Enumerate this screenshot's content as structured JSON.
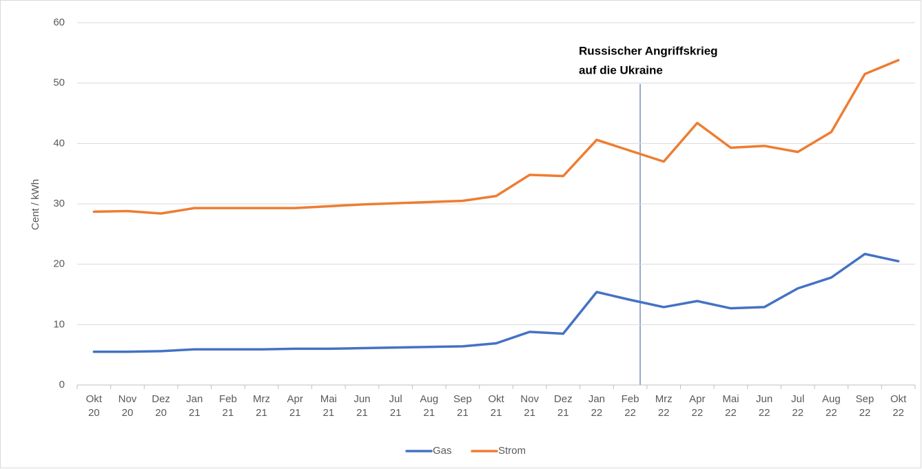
{
  "chart_data": {
    "type": "line",
    "ylabel": "Cent / kWh",
    "categories": [
      "Okt 20",
      "Nov 20",
      "Dez 20",
      "Jan 21",
      "Feb 21",
      "Mrz 21",
      "Apr 21",
      "Mai 21",
      "Jun 21",
      "Jul 21",
      "Aug 21",
      "Sep 21",
      "Okt 21",
      "Nov 21",
      "Dez 21",
      "Jan 22",
      "Feb 22",
      "Mrz 22",
      "Apr 22",
      "Mai 22",
      "Jun 22",
      "Jul 22",
      "Aug 22",
      "Sep 22",
      "Okt 22"
    ],
    "series": [
      {
        "name": "Gas",
        "color": "#4472c4",
        "values": [
          5.5,
          5.5,
          5.6,
          5.9,
          5.9,
          5.9,
          6.0,
          6.0,
          6.1,
          6.2,
          6.3,
          6.4,
          6.9,
          8.8,
          8.5,
          15.4,
          14.1,
          12.9,
          13.9,
          12.7,
          12.9,
          16.0,
          17.8,
          21.7,
          20.5
        ]
      },
      {
        "name": "Strom",
        "color": "#ed7d31",
        "values": [
          28.7,
          28.8,
          28.4,
          29.3,
          29.3,
          29.3,
          29.3,
          29.6,
          29.9,
          30.1,
          30.3,
          30.5,
          31.3,
          34.8,
          34.6,
          40.6,
          38.8,
          37.0,
          43.4,
          39.3,
          39.6,
          38.6,
          41.9,
          51.5,
          53.8
        ]
      }
    ],
    "annotation": {
      "lines": [
        "Russischer Angriffskrieg",
        "auf die Ukraine"
      ]
    },
    "ylim": [
      0,
      60
    ],
    "yticks": [
      0,
      10,
      20,
      30,
      40,
      50,
      60
    ],
    "grid": true,
    "legend": "bottom"
  }
}
